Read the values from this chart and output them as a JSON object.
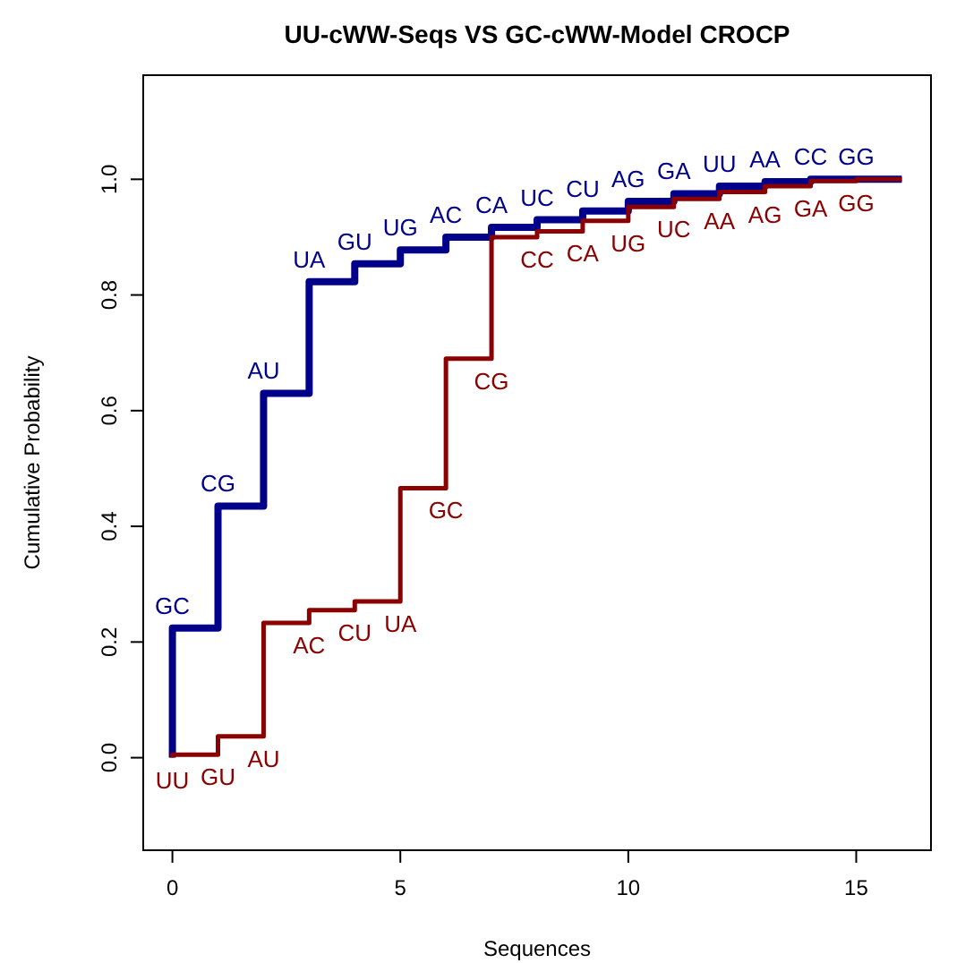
{
  "chart_data": {
    "type": "step",
    "title": "UU-cWW-Seqs VS GC-cWW-Model CROCP",
    "xlabel": "Sequences",
    "ylabel": "Cumulative Probability",
    "x": [
      0,
      0,
      1,
      2,
      3,
      4,
      5,
      6,
      7,
      8,
      9,
      10,
      11,
      12,
      13,
      14,
      15,
      16
    ],
    "series": [
      {
        "color": "#00008b",
        "values": [
          0,
          0.224,
          0.435,
          0.63,
          0.823,
          0.854,
          0.878,
          0.9,
          0.917,
          0.93,
          0.945,
          0.962,
          0.975,
          0.988,
          0.996,
          1.0,
          1.0,
          1.0
        ],
        "value_labels": [
          null,
          "GC",
          "CG",
          "AU",
          "UA",
          "GU",
          "UG",
          "AC",
          "CA",
          "UC",
          "CU",
          "AG",
          "GA",
          "UU",
          "AA",
          "CC",
          "GG",
          null
        ]
      },
      {
        "type": "line",
        "color": "#8b0000",
        "x": [
          0,
          0,
          1,
          1,
          2,
          2,
          3,
          3,
          4,
          4,
          5,
          5,
          6,
          6,
          7,
          7,
          8,
          8,
          9,
          9,
          10,
          10,
          11,
          11,
          12,
          12,
          13,
          13,
          14,
          14,
          15,
          15,
          16
        ],
        "values": [
          0,
          0.005,
          0.005,
          0.037,
          0.037,
          0.233,
          0.233,
          0.255,
          0.255,
          0.27,
          0.27,
          0.466,
          0.466,
          0.69,
          0.69,
          0.9,
          0.9,
          0.91,
          0.91,
          0.928,
          0.928,
          0.952,
          0.952,
          0.966,
          0.966,
          0.978,
          0.978,
          0.988,
          0.988,
          0.997,
          0.997,
          1.0,
          1.0
        ],
        "value_labels": [
          "UU",
          null,
          "GU",
          null,
          "AU",
          null,
          "AC",
          null,
          "CU",
          null,
          "UA",
          null,
          "GC",
          null,
          "CG",
          null,
          "CC",
          null,
          "CA",
          null,
          "UG",
          null,
          "UC",
          null,
          "AA",
          null,
          "AG",
          null,
          "GA",
          null,
          "GG",
          null,
          null
        ]
      }
    ],
    "xlim": [
      -0.64,
      16.64
    ],
    "ylim": [
      -0.16,
      1.18
    ],
    "xticks": [
      0,
      5,
      10,
      15
    ],
    "yticks": [
      {
        "value": 0,
        "label": "0.0"
      },
      {
        "value": 0.2,
        "label": "0.2"
      },
      {
        "value": 0.4,
        "label": "0.4"
      },
      {
        "value": 0.6,
        "label": "0.6"
      },
      {
        "value": 0.8,
        "label": "0.8"
      },
      {
        "value": 1.0,
        "label": "1.0"
      }
    ],
    "grid": false
  }
}
